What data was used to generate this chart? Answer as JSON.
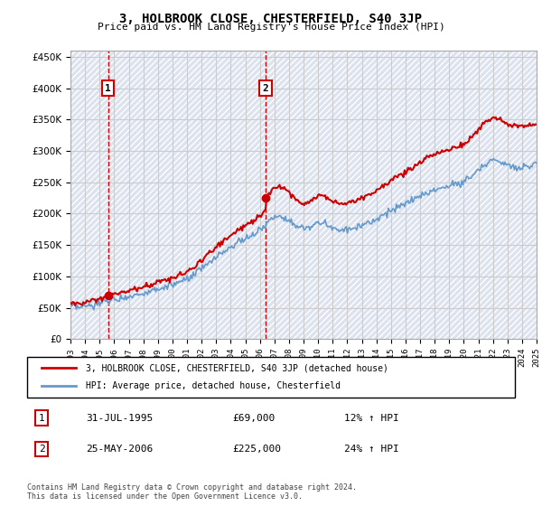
{
  "title": "3, HOLBROOK CLOSE, CHESTERFIELD, S40 3JP",
  "subtitle": "Price paid vs. HM Land Registry's House Price Index (HPI)",
  "ylim": [
    0,
    460000
  ],
  "yticks": [
    0,
    50000,
    100000,
    150000,
    200000,
    250000,
    300000,
    350000,
    400000,
    450000
  ],
  "x_start_year": 1993,
  "x_end_year": 2025,
  "sale1_date": 1995.58,
  "sale1_price": 69000,
  "sale1_label": "1",
  "sale2_date": 2006.4,
  "sale2_price": 225000,
  "sale2_label": "2",
  "legend_line1": "3, HOLBROOK CLOSE, CHESTERFIELD, S40 3JP (detached house)",
  "legend_line2": "HPI: Average price, detached house, Chesterfield",
  "table_row1_num": "1",
  "table_row1_date": "31-JUL-1995",
  "table_row1_price": "£69,000",
  "table_row1_hpi": "12% ↑ HPI",
  "table_row2_num": "2",
  "table_row2_date": "25-MAY-2006",
  "table_row2_price": "£225,000",
  "table_row2_hpi": "24% ↑ HPI",
  "footnote": "Contains HM Land Registry data © Crown copyright and database right 2024.\nThis data is licensed under the Open Government Licence v3.0.",
  "hatch_color": "#d0d8e8",
  "grid_color": "#cccccc",
  "sale_color": "#cc0000",
  "hpi_color": "#6699cc",
  "bg_hatch_color": "#e8edf5"
}
